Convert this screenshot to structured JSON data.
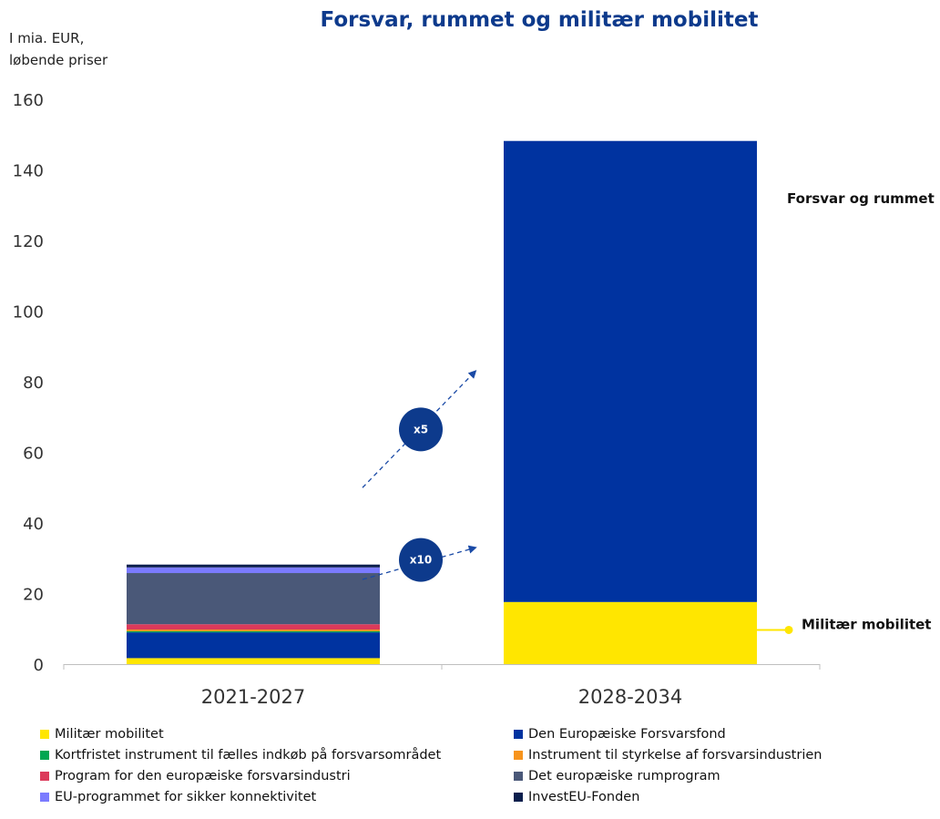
{
  "chart_data": {
    "type": "bar",
    "stacked": true,
    "title": "Forsvar, rummet og militær mobilitet",
    "unit_label_lines": [
      "I mia. EUR,",
      "løbende priser"
    ],
    "categories": [
      "2021-2027",
      "2028-2034"
    ],
    "ylim": [
      0,
      160
    ],
    "yticks": [
      0,
      20,
      40,
      60,
      80,
      100,
      120,
      140,
      160
    ],
    "grid": false,
    "legend_position": "bottom",
    "series": [
      {
        "name": "Militær mobilitet",
        "color": "#ffe600",
        "values": [
          1.7,
          17.6
        ]
      },
      {
        "name": "Den Europæiske Forsvarsfond",
        "color": "#0033a0",
        "values": [
          7.3,
          0
        ]
      },
      {
        "name": "Kortfristet instrument til fælles indkøb på forsvarsområdet",
        "color": "#00a651",
        "values": [
          0.3,
          0
        ]
      },
      {
        "name": "Instrument til styrkelse af forsvarsindustrien",
        "color": "#f7941d",
        "values": [
          0.5,
          0
        ]
      },
      {
        "name": "Program for den europæiske forsvarsindustri",
        "color": "#dc3a5a",
        "values": [
          1.5,
          0
        ]
      },
      {
        "name": "Det europæiske rumprogram",
        "color": "#4a5878",
        "values": [
          14.5,
          0
        ]
      },
      {
        "name": "EU-programmet for sikker konnektivitet",
        "color": "#7b7bff",
        "values": [
          1.6,
          0
        ]
      },
      {
        "name": "InvestEU-Fonden",
        "color": "#0b1f4d",
        "values": [
          0.8,
          0
        ]
      },
      {
        "name": "Forsvar og rummet",
        "color": "#0033a0",
        "values": [
          0,
          130.6
        ]
      }
    ],
    "legend_series": [
      "Militær mobilitet",
      "Den Europæiske Forsvarsfond",
      "Kortfristet instrument til fælles indkøb på forsvarsområdet",
      "Instrument til styrkelse af forsvarsindustrien",
      "Program for den europæiske forsvarsindustri",
      "Det europæiske rumprogram",
      "EU-programmet for sikker konnektivitet",
      "InvestEU-Fonden"
    ],
    "annotations": [
      {
        "label": "Forsvar og rummet",
        "category": "2028-2034",
        "target_series": "Forsvar og rummet"
      },
      {
        "label": "Militær mobilitet",
        "category": "2028-2034",
        "target_series": "Militær mobilitet",
        "with_marker": true
      }
    ],
    "multipliers": [
      {
        "label": "x5",
        "from_value": 50,
        "to_value": 83
      },
      {
        "label": "x10",
        "from_value": 24,
        "to_value": 33
      }
    ]
  }
}
